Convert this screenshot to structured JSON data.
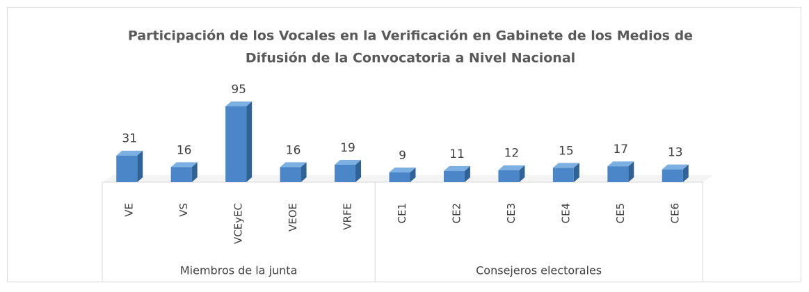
{
  "chart_data": {
    "type": "bar3d",
    "title": [
      "Participación de los Vocales en la Verificación en Gabinete de los Medios de",
      "Difusión de la Convocatoria a Nivel Nacional"
    ],
    "categories": [
      "VE",
      "VS",
      "VCEyEC",
      "VEOE",
      "VRFE",
      "CE1",
      "CE2",
      "CE3",
      "CE4",
      "CE5",
      "CE6"
    ],
    "groups": [
      {
        "name": "Miembros de la junta",
        "count": 5
      },
      {
        "name": "Consejeros electorales",
        "count": 6
      }
    ],
    "values": [
      31,
      16,
      95,
      16,
      19,
      9,
      11,
      12,
      15,
      17,
      13
    ],
    "color": "#4a86c8"
  }
}
